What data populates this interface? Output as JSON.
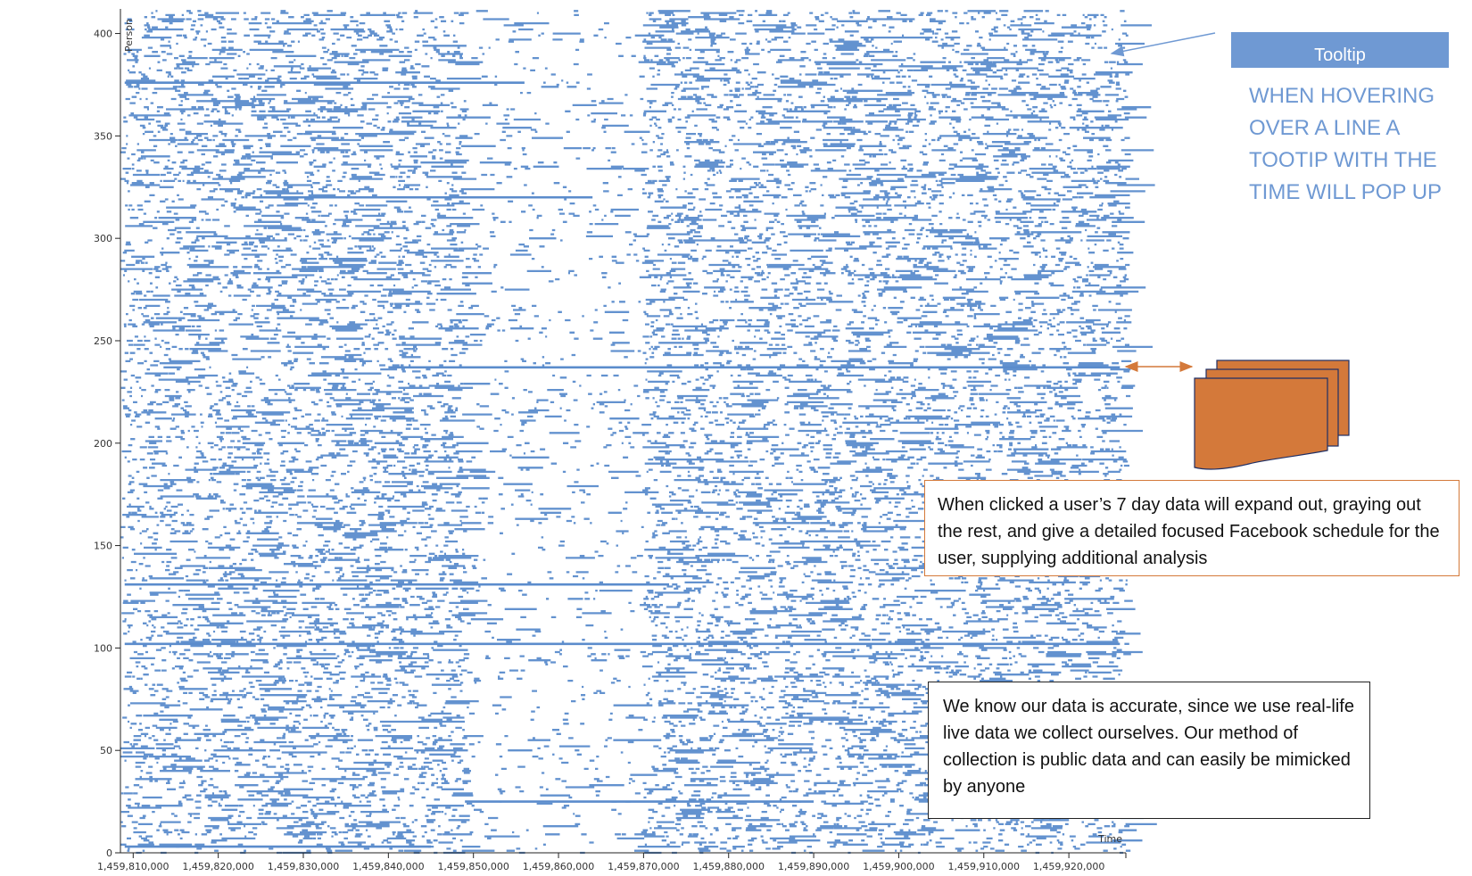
{
  "chart_data": {
    "type": "scatter",
    "title": "",
    "xlabel": "Time",
    "ylabel": "Person",
    "xlim": [
      1459808500,
      1459926700
    ],
    "ylim": [
      0,
      412
    ],
    "x_ticks": [
      1459810000,
      1459820000,
      1459830000,
      1459840000,
      1459850000,
      1459860000,
      1459870000,
      1459880000,
      1459890000,
      1459900000,
      1459910000,
      1459920000
    ],
    "x_tick_labels": [
      "1,459,810,000",
      "1,459,820,000",
      "1,459,830,000",
      "1,459,840,000",
      "1,459,850,000",
      "1,459,860,000",
      "1,459,870,000",
      "1,459,880,000",
      "1,459,890,000",
      "1,459,900,000",
      "1,459,910,000",
      "1,459,920,000"
    ],
    "y_ticks": [
      0,
      50,
      100,
      150,
      200,
      250,
      300,
      350,
      400
    ],
    "y_tick_labels": [
      "0",
      "50",
      "100",
      "150",
      "200",
      "250",
      "300",
      "350",
      "400"
    ],
    "mark_color": "#5b8ccc",
    "long_sessions": [
      {
        "person": 376,
        "x_start": 1459809000,
        "x_end": 1459856000
      },
      {
        "person": 320,
        "x_start": 1459824000,
        "x_end": 1459864000
      },
      {
        "person": 237,
        "x_start": 1459840000,
        "x_end": 1459926000
      },
      {
        "person": 131,
        "x_start": 1459809000,
        "x_end": 1459873000
      },
      {
        "person": 102,
        "x_start": 1459809000,
        "x_end": 1459926000
      },
      {
        "person": 25,
        "x_start": 1459849000,
        "x_end": 1459890000
      },
      {
        "person": 3,
        "x_start": 1459809000,
        "x_end": 1459845000
      }
    ]
  },
  "annotations": {
    "tooltip_label": "Tooltip",
    "hover_note": "WHEN HOVERING OVER A LINE A TOOTIP WITH THE TIME WILL POP UP",
    "click_note": "When clicked a user’s 7 day data will expand out, graying out the rest, and give a detailed focused Facebook schedule for the user, supplying additional analysis",
    "accuracy_note": "We know our data is accurate, since we use real-life live data we collect ourselves. Our method of collection is public data and can easily be mimicked by anyone",
    "arrow_color": "#6f99d3",
    "accent_color": "#d4793a"
  }
}
